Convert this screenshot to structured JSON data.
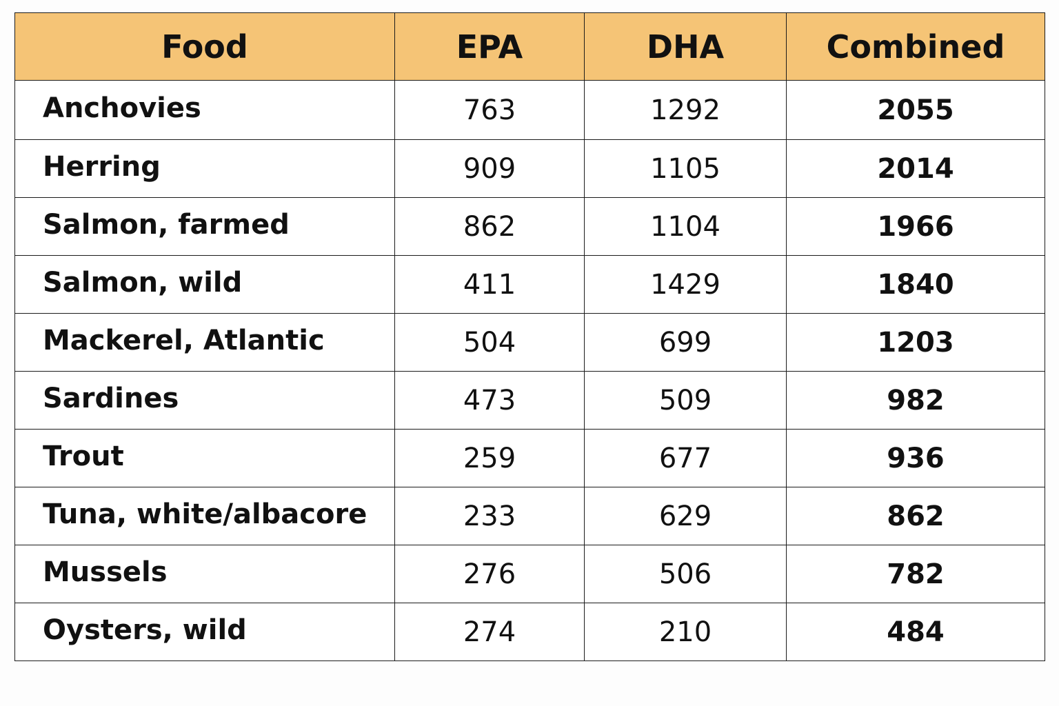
{
  "table": {
    "headers": {
      "food": "Food",
      "epa": "EPA",
      "dha": "DHA",
      "combined": "Combined"
    },
    "header_color": "#f5c476",
    "rows": [
      {
        "food": "Anchovies",
        "epa": "763",
        "dha": "1292",
        "combined": "2055"
      },
      {
        "food": "Herring",
        "epa": "909",
        "dha": "1105",
        "combined": "2014"
      },
      {
        "food": "Salmon, farmed",
        "epa": "862",
        "dha": "1104",
        "combined": "1966"
      },
      {
        "food": "Salmon, wild",
        "epa": "411",
        "dha": "1429",
        "combined": "1840"
      },
      {
        "food": "Mackerel, Atlantic",
        "epa": "504",
        "dha": "699",
        "combined": "1203"
      },
      {
        "food": "Sardines",
        "epa": "473",
        "dha": "509",
        "combined": "982"
      },
      {
        "food": "Trout",
        "epa": "259",
        "dha": "677",
        "combined": "936"
      },
      {
        "food": "Tuna, white/albacore",
        "epa": "233",
        "dha": "629",
        "combined": "862"
      },
      {
        "food": "Mussels",
        "epa": "276",
        "dha": "506",
        "combined": "782"
      },
      {
        "food": "Oysters, wild",
        "epa": "274",
        "dha": "210",
        "combined": "484"
      }
    ]
  }
}
